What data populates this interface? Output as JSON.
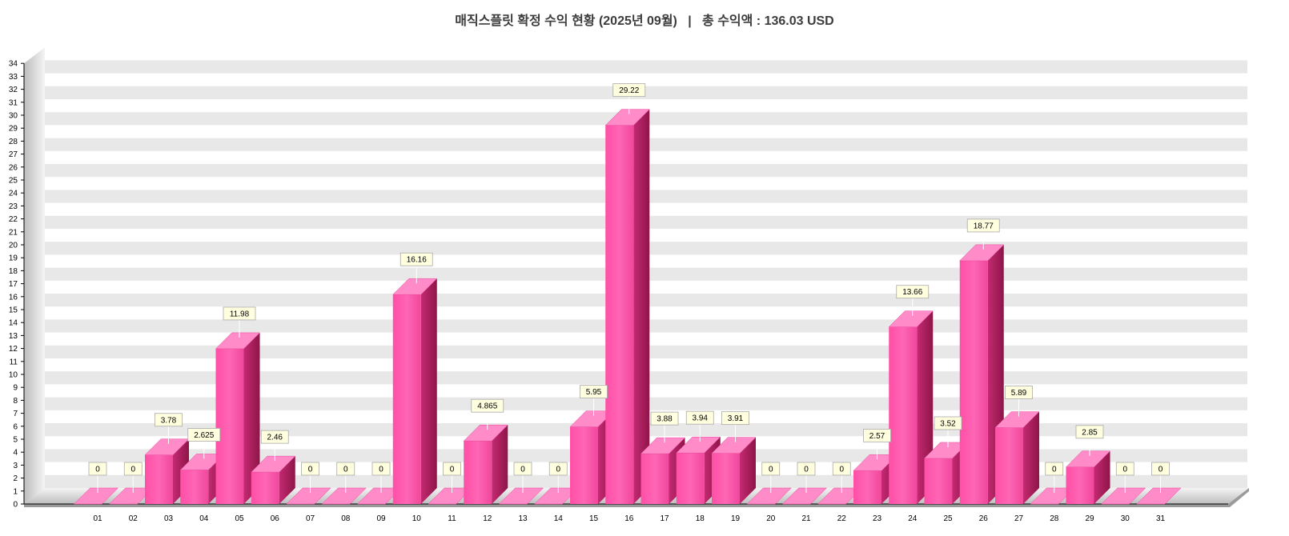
{
  "title": "매직스플릿 확정 수익 현황 (2025년 09월)   |   총 수익액 : 136.03 USD",
  "colors": {
    "bar_front": "#ff5fb0",
    "bar_top": "#ff8cc8",
    "bar_side": "#b0205e",
    "band": "#e8e8e8",
    "label_bg": "#ffffe0"
  },
  "chart_data": {
    "type": "bar",
    "title": "매직스플릿 확정 수익 현황 (2025년 09월)   |   총 수익액 : 136.03 USD",
    "xlabel": "",
    "ylabel": "",
    "ylim": [
      0,
      34
    ],
    "yticks": [
      0,
      1,
      2,
      3,
      4,
      5,
      6,
      7,
      8,
      9,
      10,
      11,
      12,
      13,
      14,
      15,
      16,
      17,
      18,
      19,
      20,
      21,
      22,
      23,
      24,
      25,
      26,
      27,
      28,
      29,
      30,
      31,
      32,
      33,
      34
    ],
    "grid": "alternating horizontal bands",
    "legend": "none",
    "style": "3d",
    "categories": [
      "01",
      "02",
      "03",
      "04",
      "05",
      "06",
      "07",
      "08",
      "09",
      "10",
      "11",
      "12",
      "13",
      "14",
      "15",
      "16",
      "17",
      "18",
      "19",
      "20",
      "21",
      "22",
      "23",
      "24",
      "25",
      "26",
      "27",
      "28",
      "29",
      "30",
      "31"
    ],
    "values": [
      0,
      0,
      3.78,
      2.625,
      11.98,
      2.46,
      0,
      0,
      0,
      16.16,
      0,
      4.865,
      0,
      0,
      5.95,
      29.22,
      3.88,
      3.94,
      3.91,
      0,
      0,
      0,
      2.57,
      13.66,
      3.52,
      18.77,
      5.89,
      0,
      2.85,
      0,
      0
    ],
    "data_labels": [
      "0",
      "0",
      "3.78",
      "2.625",
      "11.98",
      "2.46",
      "0",
      "0",
      "0",
      "16.16",
      "0",
      "4.865",
      "0",
      "0",
      "5.95",
      "29.22",
      "3.88",
      "3.94",
      "3.91",
      "0",
      "0",
      "0",
      "2.57",
      "13.66",
      "3.52",
      "18.77",
      "5.89",
      "0",
      "2.85",
      "0",
      "0"
    ]
  }
}
